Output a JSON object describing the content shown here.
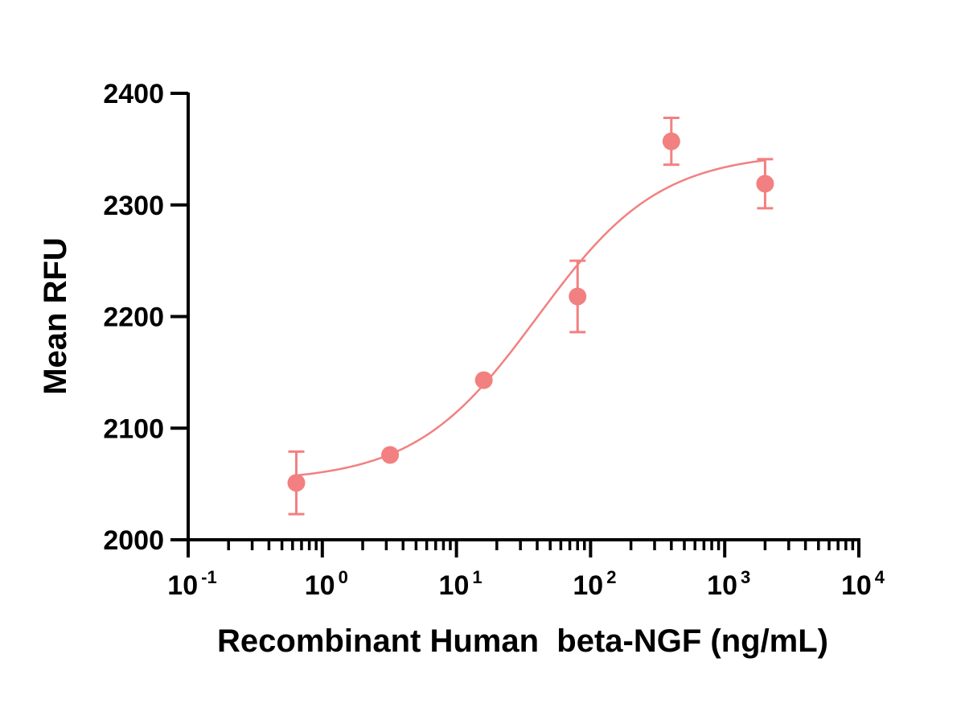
{
  "chart_data": {
    "type": "scatter",
    "title": "",
    "xlabel": "Recombinant Human  beta-NGF (ng/mL)",
    "ylabel": "Mean RFU",
    "x_scale": "log10",
    "xlim": [
      0.1,
      10000
    ],
    "ylim": [
      2000,
      2400
    ],
    "grid": false,
    "colors": {
      "series": "#f28080"
    },
    "x_ticks": [
      {
        "base": "10",
        "exp": "-1"
      },
      {
        "base": "10",
        "exp": "0"
      },
      {
        "base": "10",
        "exp": "1"
      },
      {
        "base": "10",
        "exp": "2"
      },
      {
        "base": "10",
        "exp": "3"
      },
      {
        "base": "10",
        "exp": "4"
      }
    ],
    "y_ticks": [
      "2000",
      "2100",
      "2200",
      "2300",
      "2400"
    ],
    "series": [
      {
        "points": [
          {
            "x": 0.64,
            "y": 2051,
            "err": 28
          },
          {
            "x": 3.2,
            "y": 2076,
            "err": 0
          },
          {
            "x": 16,
            "y": 2143,
            "err": 0
          },
          {
            "x": 80,
            "y": 2218,
            "err": 32
          },
          {
            "x": 400,
            "y": 2357,
            "err": 21
          },
          {
            "x": 2000,
            "y": 2319,
            "err": 22
          }
        ],
        "fit": {
          "model": "4PL",
          "bottom": 2052,
          "top": 2347,
          "ec50": 40,
          "hill": 0.95,
          "x_range": [
            0.64,
            2000
          ]
        }
      }
    ]
  }
}
